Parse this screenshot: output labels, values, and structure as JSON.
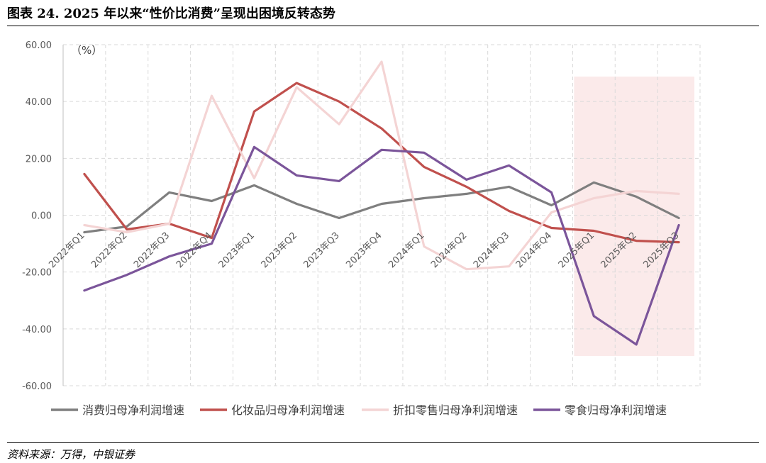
{
  "header": {
    "title": "图表 24. 2025 年以来“性价比消费”呈现出困境反转态势"
  },
  "footer": {
    "source": "资料来源：万得，中银证券"
  },
  "chart_data": {
    "type": "line",
    "unit_label": "（%）",
    "categories": [
      "2022年Q1",
      "2022年Q2",
      "2022年Q3",
      "2022年Q4",
      "2023年Q1",
      "2023年Q2",
      "2023年Q3",
      "2023年Q4",
      "2024年Q1",
      "2024年Q2",
      "2024年Q3",
      "2024年Q4",
      "2025年Q1",
      "2025年Q2",
      "2025年Q3"
    ],
    "y_ticks": [
      "60.00",
      "40.00",
      "20.00",
      "0.00",
      "-20.00",
      "-40.00",
      "-60.00"
    ],
    "ylim": [
      -60,
      60
    ],
    "grid": true,
    "legend_position": "bottom",
    "highlight_range": {
      "from": "2025年Q1",
      "to": "2025年Q3"
    },
    "colors": {
      "highlight": "#fbeaea",
      "grid": "#d9d9d9"
    },
    "series": [
      {
        "name": "消费归母净利润增速",
        "color": "#7f7f7f",
        "values": [
          -6,
          -4,
          8,
          5,
          10.5,
          4,
          -1,
          4,
          6,
          7.5,
          10,
          3.5,
          11.5,
          6.5,
          -1
        ]
      },
      {
        "name": "化妆品归母净利润增速",
        "color": "#c0504d",
        "values": [
          14.5,
          -5,
          -3,
          -8,
          36.5,
          46.5,
          40,
          30.5,
          17,
          10,
          1.5,
          -4.5,
          -5.5,
          -9,
          -9.5
        ]
      },
      {
        "name": "折扣零售归母净利润增速",
        "color": "#f4d4d4",
        "values": [
          -3.5,
          -6,
          -3,
          42,
          13,
          45,
          32,
          54,
          -11,
          -19,
          -18,
          1,
          6,
          8.5,
          7.5
        ]
      },
      {
        "name": "零食归母净利润增速",
        "color": "#7b559a",
        "values": [
          -26.5,
          -21,
          -14.5,
          -10,
          24,
          14,
          12,
          23,
          22,
          12.5,
          17.5,
          8,
          -35.5,
          -45.5,
          -3.5
        ]
      }
    ]
  }
}
